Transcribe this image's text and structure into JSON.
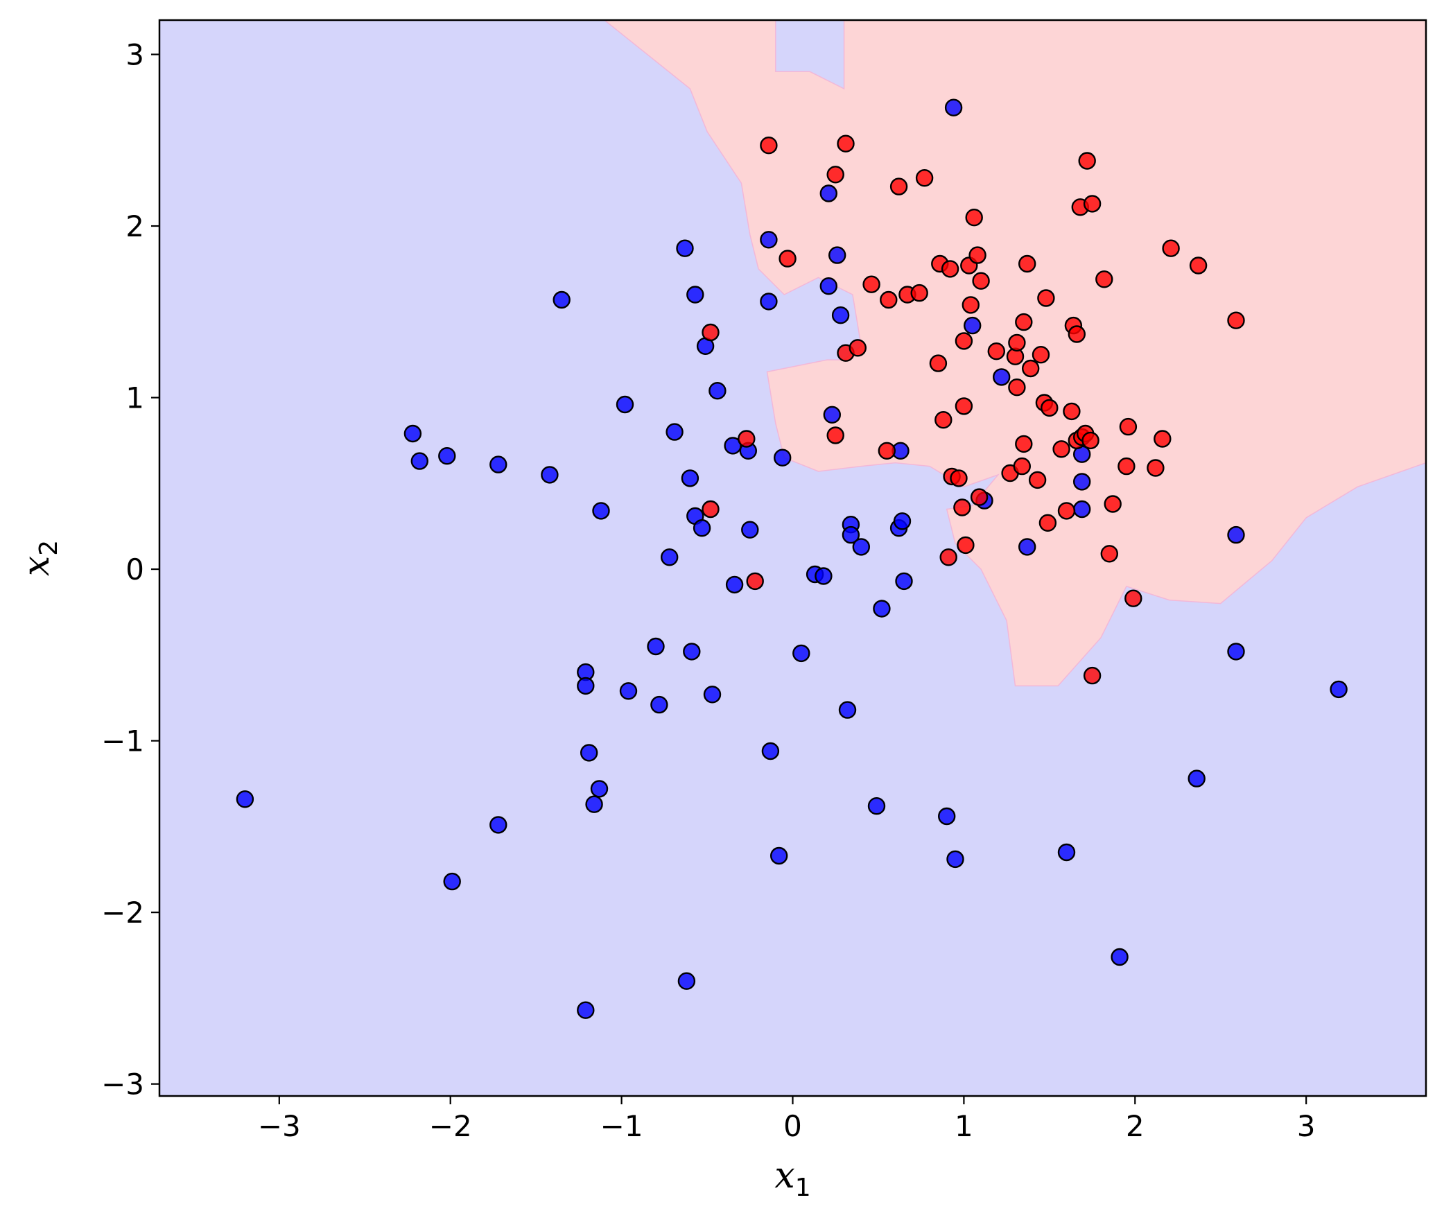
{
  "chart_data": {
    "type": "scatter",
    "title": "",
    "xlabel": "x",
    "xlabel_sub": "1",
    "ylabel": "x",
    "ylabel_sub": "2",
    "xlim": [
      -3.7,
      3.7
    ],
    "ylim": [
      -3.07,
      3.2
    ],
    "xticks": [
      -3,
      -2,
      -1,
      0,
      1,
      2,
      3
    ],
    "yticks": [
      -3,
      -2,
      -1,
      0,
      1,
      2,
      3
    ],
    "xtick_labels": [
      "−3",
      "−2",
      "−1",
      "0",
      "1",
      "2",
      "3"
    ],
    "ytick_labels": [
      "−3",
      "−2",
      "−1",
      "0",
      "1",
      "2",
      "3"
    ],
    "grid": false,
    "colors": {
      "class_0_region": "#d5d5fb",
      "class_1_region": "#fdd5d6",
      "class_0_points": "#0000ff",
      "class_1_points": "#ff0000",
      "point_edge": "#000000"
    },
    "decision_region_class_1": [
      [
        -1.1,
        3.2
      ],
      [
        -0.6,
        2.8
      ],
      [
        -0.5,
        2.55
      ],
      [
        -0.3,
        2.25
      ],
      [
        -0.25,
        1.95
      ],
      [
        -0.2,
        1.75
      ],
      [
        -0.05,
        1.6
      ],
      [
        0.15,
        1.7
      ],
      [
        0.35,
        1.6
      ],
      [
        0.4,
        1.3
      ],
      [
        0.3,
        1.22
      ],
      [
        0.2,
        1.22
      ],
      [
        0.0,
        1.18
      ],
      [
        -0.15,
        1.15
      ],
      [
        -0.1,
        0.85
      ],
      [
        -0.05,
        0.65
      ],
      [
        0.15,
        0.57
      ],
      [
        0.4,
        0.6
      ],
      [
        0.6,
        0.62
      ],
      [
        0.8,
        0.6
      ],
      [
        1.0,
        0.48
      ],
      [
        1.2,
        0.55
      ],
      [
        1.05,
        0.37
      ],
      [
        0.9,
        0.35
      ],
      [
        0.95,
        0.15
      ],
      [
        1.1,
        0.0
      ],
      [
        1.25,
        -0.3
      ],
      [
        1.3,
        -0.68
      ],
      [
        1.55,
        -0.68
      ],
      [
        1.8,
        -0.4
      ],
      [
        1.95,
        -0.1
      ],
      [
        2.2,
        -0.18
      ],
      [
        2.5,
        -0.2
      ],
      [
        2.8,
        0.05
      ],
      [
        3.0,
        0.3
      ],
      [
        3.3,
        0.48
      ],
      [
        3.7,
        0.62
      ],
      [
        3.7,
        3.2
      ],
      [
        0.3,
        3.2
      ],
      [
        0.3,
        2.8
      ],
      [
        0.1,
        2.9
      ],
      [
        -0.1,
        2.9
      ],
      [
        -0.1,
        3.2
      ]
    ],
    "series": [
      {
        "name": "",
        "class": 0,
        "points": [
          [
            -3.2,
            -1.34
          ],
          [
            -2.22,
            0.79
          ],
          [
            -2.18,
            0.63
          ],
          [
            -2.02,
            0.66
          ],
          [
            -1.72,
            0.61
          ],
          [
            -1.72,
            -1.49
          ],
          [
            -1.42,
            0.55
          ],
          [
            -1.35,
            1.57
          ],
          [
            -1.99,
            -1.82
          ],
          [
            -1.21,
            -0.6
          ],
          [
            -1.21,
            -0.68
          ],
          [
            -1.19,
            -1.07
          ],
          [
            -1.16,
            -1.37
          ],
          [
            -1.13,
            -1.28
          ],
          [
            -1.12,
            0.34
          ],
          [
            -1.21,
            -2.57
          ],
          [
            -0.98,
            0.96
          ],
          [
            -0.96,
            -0.71
          ],
          [
            -0.8,
            -0.45
          ],
          [
            -0.78,
            -0.79
          ],
          [
            -0.72,
            0.07
          ],
          [
            -0.69,
            0.8
          ],
          [
            -0.63,
            1.87
          ],
          [
            -0.6,
            0.53
          ],
          [
            -0.59,
            -0.48
          ],
          [
            -0.57,
            1.6
          ],
          [
            -0.57,
            0.31
          ],
          [
            -0.53,
            0.24
          ],
          [
            -0.51,
            1.3
          ],
          [
            -0.47,
            -0.73
          ],
          [
            -0.44,
            1.04
          ],
          [
            -0.62,
            -2.4
          ],
          [
            -0.35,
            0.72
          ],
          [
            -0.34,
            -0.09
          ],
          [
            -0.26,
            0.69
          ],
          [
            -0.25,
            0.23
          ],
          [
            -0.14,
            1.92
          ],
          [
            -0.14,
            1.56
          ],
          [
            -0.13,
            -1.06
          ],
          [
            -0.08,
            -1.67
          ],
          [
            -0.06,
            0.65
          ],
          [
            0.05,
            -0.49
          ],
          [
            0.13,
            -0.03
          ],
          [
            0.18,
            -0.04
          ],
          [
            0.21,
            2.19
          ],
          [
            0.21,
            1.65
          ],
          [
            0.23,
            0.9
          ],
          [
            0.26,
            1.83
          ],
          [
            0.28,
            1.48
          ],
          [
            0.32,
            -0.82
          ],
          [
            0.34,
            0.26
          ],
          [
            0.34,
            0.2
          ],
          [
            0.4,
            0.13
          ],
          [
            0.49,
            -1.38
          ],
          [
            0.52,
            -0.23
          ],
          [
            0.62,
            0.24
          ],
          [
            0.63,
            0.69
          ],
          [
            0.64,
            0.28
          ],
          [
            0.65,
            -0.07
          ],
          [
            0.9,
            -1.44
          ],
          [
            0.94,
            2.69
          ],
          [
            0.95,
            -1.69
          ],
          [
            1.05,
            1.42
          ],
          [
            1.12,
            0.4
          ],
          [
            1.22,
            1.12
          ],
          [
            1.37,
            0.13
          ],
          [
            1.6,
            -1.65
          ],
          [
            1.69,
            0.67
          ],
          [
            1.69,
            0.51
          ],
          [
            1.69,
            0.35
          ],
          [
            1.91,
            -2.26
          ],
          [
            2.36,
            -1.22
          ],
          [
            2.59,
            0.2
          ],
          [
            2.59,
            -0.48
          ],
          [
            3.19,
            -0.7
          ]
        ]
      },
      {
        "name": "",
        "class": 1,
        "points": [
          [
            -0.14,
            2.47
          ],
          [
            -0.03,
            1.81
          ],
          [
            -0.48,
            1.38
          ],
          [
            -0.48,
            0.35
          ],
          [
            -0.27,
            0.76
          ],
          [
            -0.22,
            -0.07
          ],
          [
            0.25,
            2.3
          ],
          [
            0.25,
            0.78
          ],
          [
            0.31,
            2.48
          ],
          [
            0.31,
            1.26
          ],
          [
            0.38,
            1.29
          ],
          [
            0.46,
            1.66
          ],
          [
            0.55,
            0.69
          ],
          [
            0.56,
            1.57
          ],
          [
            0.62,
            2.23
          ],
          [
            0.67,
            1.6
          ],
          [
            0.74,
            1.61
          ],
          [
            0.77,
            2.28
          ],
          [
            0.85,
            1.2
          ],
          [
            0.86,
            1.78
          ],
          [
            0.88,
            0.87
          ],
          [
            0.91,
            0.07
          ],
          [
            0.92,
            1.75
          ],
          [
            0.93,
            0.54
          ],
          [
            0.97,
            0.53
          ],
          [
            0.99,
            0.36
          ],
          [
            1.0,
            0.95
          ],
          [
            1.0,
            1.33
          ],
          [
            1.01,
            0.14
          ],
          [
            1.03,
            1.77
          ],
          [
            1.04,
            1.54
          ],
          [
            1.06,
            2.05
          ],
          [
            1.08,
            1.83
          ],
          [
            1.09,
            0.42
          ],
          [
            1.1,
            1.68
          ],
          [
            1.19,
            1.27
          ],
          [
            1.27,
            0.56
          ],
          [
            1.3,
            1.24
          ],
          [
            1.31,
            1.32
          ],
          [
            1.31,
            1.06
          ],
          [
            1.34,
            0.6
          ],
          [
            1.35,
            0.73
          ],
          [
            1.35,
            1.44
          ],
          [
            1.37,
            1.78
          ],
          [
            1.39,
            1.17
          ],
          [
            1.43,
            0.52
          ],
          [
            1.45,
            1.25
          ],
          [
            1.47,
            0.97
          ],
          [
            1.48,
            1.58
          ],
          [
            1.49,
            0.27
          ],
          [
            1.5,
            0.94
          ],
          [
            1.57,
            0.7
          ],
          [
            1.6,
            0.34
          ],
          [
            1.63,
            0.92
          ],
          [
            1.64,
            1.42
          ],
          [
            1.66,
            0.75
          ],
          [
            1.66,
            1.37
          ],
          [
            1.68,
            2.11
          ],
          [
            1.69,
            0.77
          ],
          [
            1.71,
            0.79
          ],
          [
            1.72,
            2.38
          ],
          [
            1.74,
            0.75
          ],
          [
            1.75,
            2.13
          ],
          [
            1.75,
            -0.62
          ],
          [
            1.82,
            1.69
          ],
          [
            1.85,
            0.09
          ],
          [
            1.87,
            0.38
          ],
          [
            1.95,
            0.6
          ],
          [
            1.96,
            0.83
          ],
          [
            1.99,
            -0.17
          ],
          [
            2.12,
            0.59
          ],
          [
            2.16,
            0.76
          ],
          [
            2.21,
            1.87
          ],
          [
            2.37,
            1.77
          ],
          [
            2.59,
            1.45
          ]
        ]
      }
    ]
  }
}
